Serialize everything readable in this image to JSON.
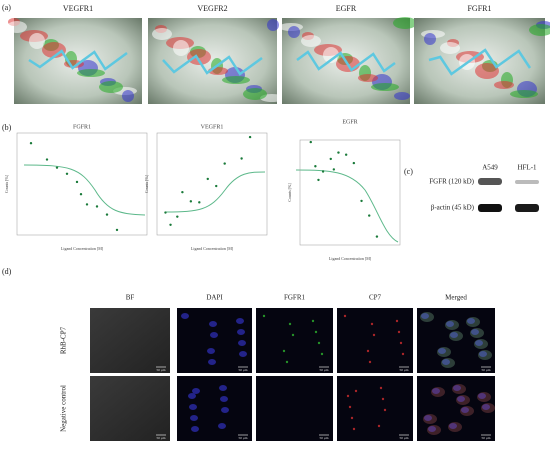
{
  "panel_a": {
    "label": "(a)",
    "titles": [
      "VEGFR1",
      "VEGFR2",
      "EGFR",
      "FGFR1"
    ]
  },
  "panel_b": {
    "label": "(b)",
    "x_label": "Ligand Concentration [M]",
    "y_label": "Counts [%]",
    "plots": [
      {
        "title": "FGFR1",
        "xlim": [
          -10,
          -3.5
        ],
        "ylim": [
          0,
          100
        ],
        "points": {
          "x": [
            -9.3,
            -8.5,
            -8,
            -7.5,
            -7,
            -6.8,
            -6.5,
            -6,
            -5.5,
            -5
          ],
          "y": [
            90,
            74,
            66,
            60,
            52,
            40,
            30,
            28,
            20,
            5
          ]
        }
      },
      {
        "title": "VEGFR1",
        "xlim": [
          -10,
          -3.5
        ],
        "ylim": [
          0,
          100
        ],
        "points": {
          "x": [
            -9.5,
            -9.2,
            -8.8,
            -8.5,
            -8,
            -7.5,
            -7,
            -6.5,
            -6,
            -5,
            -4.5
          ],
          "y": [
            22,
            10,
            18,
            42,
            33,
            32,
            55,
            48,
            70,
            75,
            96
          ]
        }
      },
      {
        "title": "EGFR",
        "xlim": [
          -10,
          -3.5
        ],
        "ylim": [
          0,
          100
        ],
        "points": {
          "x": [
            -9.3,
            -9,
            -8.8,
            -8.5,
            -8,
            -7.8,
            -7.5,
            -7,
            -6.5,
            -6,
            -5.5,
            -5
          ],
          "y": [
            98,
            75,
            62,
            70,
            82,
            72,
            88,
            86,
            78,
            42,
            28,
            8
          ]
        }
      }
    ]
  },
  "panel_c": {
    "label": "(c)",
    "lanes": [
      "A549",
      "HFL-1"
    ],
    "rows": [
      "FGFR (120 kD)",
      "β-actin (45 kD)"
    ]
  },
  "panel_d": {
    "label": "(d)",
    "columns": [
      "BF",
      "DAPI",
      "FGFR1",
      "CP7",
      "Merged"
    ],
    "rows": [
      "RhB-CP7",
      "Negative control"
    ],
    "scale_bar": "50 μm"
  }
}
